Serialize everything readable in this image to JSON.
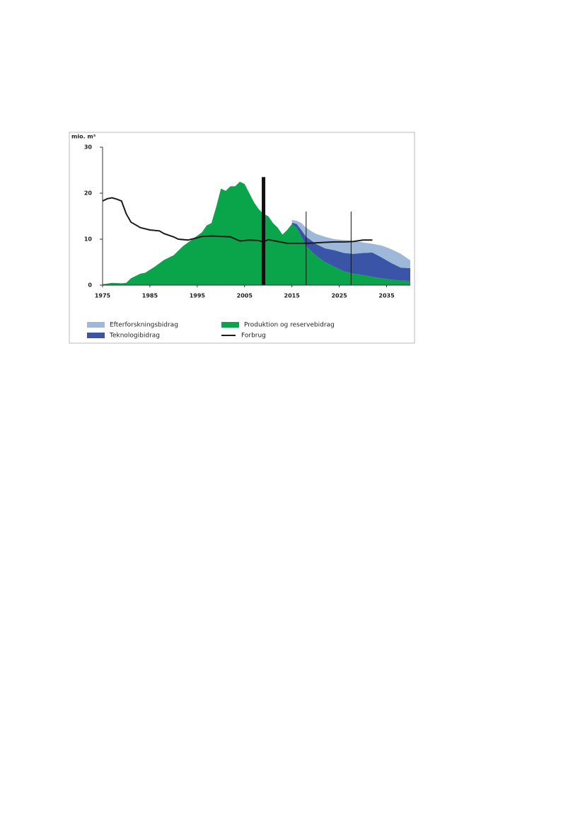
{
  "chart_data": {
    "type": "stacked_area",
    "y_label": "mio. m³",
    "xlim": [
      1975,
      2040
    ],
    "xticks": [
      1975,
      1985,
      1995,
      2005,
      2015,
      2025,
      2035
    ],
    "ylim": [
      0,
      30
    ],
    "yticks": [
      0,
      10,
      20,
      30
    ],
    "series": [
      {
        "name": "Produktion og reservebidrag",
        "color": "#0aa54a",
        "kind": "area",
        "x": [
          1975,
          1977,
          1979,
          1980,
          1981,
          1983,
          1984,
          1986,
          1988,
          1990,
          1992,
          1994,
          1996,
          1997,
          1998,
          1999,
          2000,
          2001,
          2002,
          2003,
          2004,
          2005,
          2006,
          2007,
          2008,
          2009,
          2010,
          2011,
          2012,
          2013,
          2014,
          2015,
          2016,
          2017,
          2018,
          2019,
          2020,
          2022,
          2024,
          2026,
          2028,
          2030,
          2032,
          2034,
          2036,
          2038,
          2040
        ],
        "values": [
          0.2,
          0.5,
          0.4,
          0.5,
          1.5,
          2.5,
          2.7,
          4,
          5.5,
          6.5,
          8.5,
          10,
          11.5,
          13,
          13.5,
          17,
          21,
          20.5,
          21.5,
          21.5,
          22.5,
          22,
          20,
          18,
          16.5,
          15.5,
          15,
          13.5,
          12.5,
          11,
          12,
          13.3,
          12.5,
          10.5,
          8.5,
          7.5,
          6.5,
          5,
          4,
          3,
          2.5,
          2.2,
          1.8,
          1.5,
          1.2,
          1,
          0.9
        ]
      },
      {
        "name": "Teknologibidrag",
        "color": "#3a54a8",
        "kind": "area",
        "x": [
          2015,
          2016,
          2017,
          2018,
          2019,
          2020,
          2022,
          2024,
          2026,
          2028,
          2030,
          2032,
          2034,
          2036,
          2038,
          2040
        ],
        "values": [
          0.3,
          0.8,
          1.5,
          2,
          2.3,
          2.5,
          3,
          3.6,
          4,
          4.3,
          4.8,
          5.3,
          4.5,
          3.6,
          2.8,
          2.8
        ]
      },
      {
        "name": "Efterforskningsbidrag",
        "color": "#9db8d9",
        "kind": "area",
        "x": [
          2015,
          2016,
          2017,
          2018,
          2019,
          2020,
          2022,
          2024,
          2026,
          2028,
          2030,
          2032,
          2034,
          2036,
          2038,
          2040
        ],
        "values": [
          0.6,
          0.7,
          1.5,
          2,
          2,
          2.2,
          2.5,
          2.4,
          2.8,
          2.8,
          2.3,
          1.9,
          2.6,
          3,
          3,
          1.7
        ]
      },
      {
        "name": "Forbrug",
        "color": "#1a1a1a",
        "kind": "line",
        "x": [
          1975,
          1976,
          1977,
          1978,
          1979,
          1980,
          1981,
          1983,
          1985,
          1987,
          1988,
          1990,
          1991,
          1993,
          1995,
          1996,
          1998,
          2000,
          2002,
          2004,
          2006,
          2008,
          2009,
          2010,
          2012,
          2014,
          2016,
          2018,
          2020,
          2022,
          2024,
          2026,
          2028,
          2030,
          2032
        ],
        "values": [
          18.3,
          18.8,
          19,
          18.7,
          18.3,
          15.5,
          13.7,
          12.5,
          12,
          11.8,
          11.2,
          10.5,
          10,
          9.8,
          10.3,
          10.6,
          10.7,
          10.6,
          10.5,
          9.6,
          9.8,
          9.7,
          9.4,
          9.9,
          9.5,
          9.1,
          9.1,
          9.1,
          9.2,
          9.3,
          9.4,
          9.4,
          9.5,
          9.8,
          9.8
        ]
      }
    ],
    "reference_lines": [
      {
        "x": 2009,
        "y": 23.5
      },
      {
        "x": 2018,
        "y": 16
      },
      {
        "x": 2027.5,
        "y": 16
      }
    ]
  }
}
